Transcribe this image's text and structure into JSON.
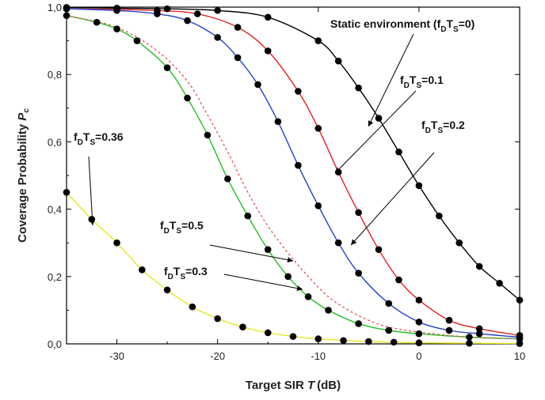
{
  "chart_data": {
    "type": "line",
    "xlabel": "Target SIR",
    "xlabel_var": "T",
    "xlabel_unit": "(dB)",
    "ylabel": "Coverage Probability",
    "ylabel_var": "P",
    "ylabel_var_sub": "c",
    "xlim": [
      -35,
      10
    ],
    "ylim": [
      0,
      1
    ],
    "x_ticks": [
      -30,
      -20,
      -10,
      0,
      10
    ],
    "y_ticks": [
      0,
      0.2,
      0.4,
      0.6,
      0.8,
      1.0
    ],
    "x_tick_labels": [
      "-30",
      "-20",
      "-10",
      "0",
      "10"
    ],
    "y_tick_labels": [
      "0,0",
      "0,2",
      "0,4",
      "0,6",
      "0,8",
      "1,0"
    ],
    "grid": false,
    "series": [
      {
        "color": "#000000",
        "x": [
          -35,
          -30,
          -25,
          -20,
          -15,
          -10,
          -8,
          -6,
          -4,
          -2,
          0,
          2,
          4,
          6,
          8,
          10
        ],
        "y": [
          0.999,
          0.997,
          0.995,
          0.99,
          0.97,
          0.9,
          0.84,
          0.76,
          0.67,
          0.57,
          0.47,
          0.38,
          0.3,
          0.23,
          0.18,
          0.13
        ]
      },
      {
        "color": "#e02020",
        "x": [
          -35,
          -30,
          -26,
          -22,
          -18,
          -15,
          -12,
          -10,
          -8,
          -6,
          -4,
          -2,
          0,
          3,
          6,
          10
        ],
        "y": [
          0.995,
          0.993,
          0.99,
          0.98,
          0.94,
          0.87,
          0.75,
          0.64,
          0.51,
          0.39,
          0.28,
          0.19,
          0.13,
          0.07,
          0.045,
          0.025
        ]
      },
      {
        "color": "#2040d0",
        "x": [
          -35,
          -30,
          -26,
          -23,
          -20,
          -18,
          -16,
          -14,
          -12,
          -10,
          -8,
          -6,
          -3,
          0,
          3,
          6,
          10
        ],
        "y": [
          0.995,
          0.99,
          0.98,
          0.96,
          0.91,
          0.85,
          0.77,
          0.66,
          0.53,
          0.41,
          0.3,
          0.21,
          0.12,
          0.065,
          0.04,
          0.03,
          0.02
        ]
      },
      {
        "color": "#20c020",
        "x": [
          -35,
          -32,
          -30,
          -28,
          -25,
          -23,
          -21,
          -19,
          -17,
          -15,
          -13,
          -11,
          -9,
          -6,
          -3,
          0,
          5,
          10
        ],
        "y": [
          0.975,
          0.955,
          0.935,
          0.9,
          0.82,
          0.73,
          0.62,
          0.49,
          0.38,
          0.28,
          0.2,
          0.14,
          0.1,
          0.06,
          0.04,
          0.03,
          0.02,
          0.015
        ]
      },
      {
        "color": "#e06060",
        "dashed": true,
        "markers": false,
        "x": [
          -35,
          -30,
          -26,
          -23,
          -21,
          -19,
          -17,
          -15,
          -13,
          -11,
          -9,
          -7,
          -5,
          -3,
          0,
          5,
          10
        ],
        "y": [
          0.975,
          0.94,
          0.87,
          0.78,
          0.68,
          0.57,
          0.45,
          0.35,
          0.27,
          0.2,
          0.14,
          0.1,
          0.07,
          0.05,
          0.035,
          0.02,
          0.015
        ]
      },
      {
        "color": "#e8e820",
        "x": [
          -35,
          -32.5,
          -30,
          -27.5,
          -25,
          -22.5,
          -20,
          -17.5,
          -15,
          -12.5,
          -10,
          -7.5,
          -5,
          -2.5,
          0,
          5,
          10
        ],
        "y": [
          0.45,
          0.37,
          0.3,
          0.22,
          0.16,
          0.11,
          0.075,
          0.05,
          0.033,
          0.022,
          0.015,
          0.01,
          0.007,
          0.005,
          0.003,
          0.002,
          0.001
        ]
      }
    ],
    "annotations": [
      {
        "pre": "Static environment (f",
        "sub1": "D",
        "mid": "T",
        "sub2": "S",
        "post": "=0)"
      },
      {
        "pre": "f",
        "sub1": "D",
        "mid": "T",
        "sub2": "S",
        "post": "=0.1"
      },
      {
        "pre": "f",
        "sub1": "D",
        "mid": "T",
        "sub2": "S",
        "post": "=0.2"
      },
      {
        "pre": "f",
        "sub1": "D",
        "mid": "T",
        "sub2": "S",
        "post": "=0.36"
      },
      {
        "pre": "f",
        "sub1": "D",
        "mid": "T",
        "sub2": "S",
        "post": "=0.5"
      },
      {
        "pre": "f",
        "sub1": "D",
        "mid": "T",
        "sub2": "S",
        "post": "=0.3"
      }
    ]
  }
}
